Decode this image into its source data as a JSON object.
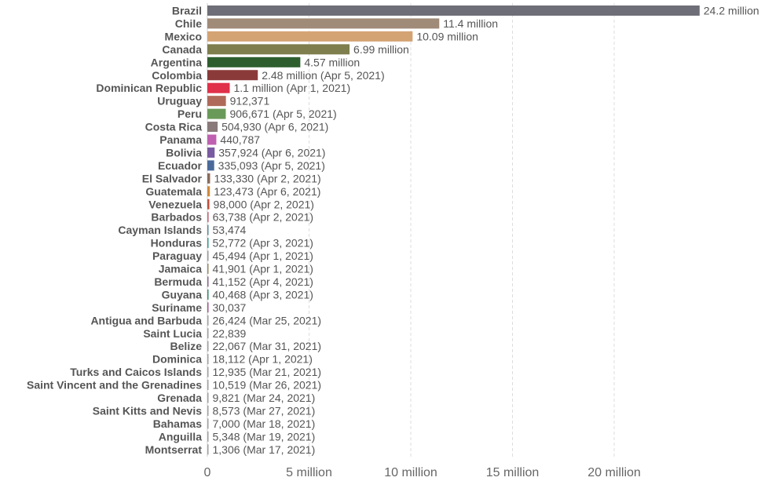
{
  "chart_data": {
    "type": "bar",
    "orientation": "horizontal",
    "xlim": [
      0,
      25000000
    ],
    "x_ticks": [
      {
        "value": 0,
        "label": "0"
      },
      {
        "value": 5000000,
        "label": "5 million"
      },
      {
        "value": 10000000,
        "label": "10 million"
      },
      {
        "value": 15000000,
        "label": "15 million"
      },
      {
        "value": 20000000,
        "label": "20 million"
      }
    ],
    "grid": true,
    "bars": [
      {
        "category": "Brazil",
        "value": 24200000,
        "label": "24.2 million",
        "color": "#6e6e78"
      },
      {
        "category": "Chile",
        "value": 11400000,
        "label": "11.4 million",
        "color": "#a08a78"
      },
      {
        "category": "Mexico",
        "value": 10090000,
        "label": "10.09 million",
        "color": "#d4a373"
      },
      {
        "category": "Canada",
        "value": 6990000,
        "label": "6.99 million",
        "color": "#7e7e4e"
      },
      {
        "category": "Argentina",
        "value": 4570000,
        "label": "4.57 million",
        "color": "#2e5e2e"
      },
      {
        "category": "Colombia",
        "value": 2480000,
        "label": "2.48 million (Apr 5, 2021)",
        "color": "#8b3a3a"
      },
      {
        "category": "Dominican Republic",
        "value": 1100000,
        "label": "1.1 million (Apr 1, 2021)",
        "color": "#e0304a"
      },
      {
        "category": "Uruguay",
        "value": 912371,
        "label": "912,371",
        "color": "#b06a5a"
      },
      {
        "category": "Peru",
        "value": 906671,
        "label": "906,671 (Apr 5, 2021)",
        "color": "#6a9a5a"
      },
      {
        "category": "Costa Rica",
        "value": 504930,
        "label": "504,930 (Apr 6, 2021)",
        "color": "#8a7a7a"
      },
      {
        "category": "Panama",
        "value": 440787,
        "label": "440,787",
        "color": "#c060b0"
      },
      {
        "category": "Bolivia",
        "value": 357924,
        "label": "357,924 (Apr 6, 2021)",
        "color": "#7a5aa0"
      },
      {
        "category": "Ecuador",
        "value": 335093,
        "label": "335,093 (Apr 5, 2021)",
        "color": "#4a6a9a"
      },
      {
        "category": "El Salvador",
        "value": 133330,
        "label": "133,330 (Apr 2, 2021)",
        "color": "#8a6a5a"
      },
      {
        "category": "Guatemala",
        "value": 123473,
        "label": "123,473 (Apr 6, 2021)",
        "color": "#d08a3a"
      },
      {
        "category": "Venezuela",
        "value": 98000,
        "label": "98,000 (Apr 2, 2021)",
        "color": "#c0503a"
      },
      {
        "category": "Barbados",
        "value": 63738,
        "label": "63,738 (Apr 2, 2021)",
        "color": "#c07080"
      },
      {
        "category": "Cayman Islands",
        "value": 53474,
        "label": "53,474",
        "color": "#5a8a9a"
      },
      {
        "category": "Honduras",
        "value": 52772,
        "label": "52,772 (Apr 3, 2021)",
        "color": "#3a9a8a"
      },
      {
        "category": "Paraguay",
        "value": 45494,
        "label": "45,494 (Apr 1, 2021)",
        "color": "#9a9a9a"
      },
      {
        "category": "Jamaica",
        "value": 41901,
        "label": "41,901 (Apr 1, 2021)",
        "color": "#9a8a6a"
      },
      {
        "category": "Bermuda",
        "value": 41152,
        "label": "41,152 (Apr 4, 2021)",
        "color": "#8a6a8a"
      },
      {
        "category": "Guyana",
        "value": 40468,
        "label": "40,468 (Apr 3, 2021)",
        "color": "#3a8a6a"
      },
      {
        "category": "Suriname",
        "value": 30037,
        "label": "30,037",
        "color": "#a05a8a"
      },
      {
        "category": "Antigua and Barbuda",
        "value": 26424,
        "label": "26,424 (Mar 25, 2021)",
        "color": "#a0a0a0"
      },
      {
        "category": "Saint Lucia",
        "value": 22839,
        "label": "22,839",
        "color": "#a0a0a0"
      },
      {
        "category": "Belize",
        "value": 22067,
        "label": "22,067 (Mar 31, 2021)",
        "color": "#a0a0a0"
      },
      {
        "category": "Dominica",
        "value": 18112,
        "label": "18,112 (Apr 1, 2021)",
        "color": "#a0a0a0"
      },
      {
        "category": "Turks and Caicos Islands",
        "value": 12935,
        "label": "12,935 (Mar 21, 2021)",
        "color": "#a0a0a0"
      },
      {
        "category": "Saint Vincent and the Grenadines",
        "value": 10519,
        "label": "10,519 (Mar 26, 2021)",
        "color": "#a0a0a0"
      },
      {
        "category": "Grenada",
        "value": 9821,
        "label": "9,821 (Mar 24, 2021)",
        "color": "#a0a0a0"
      },
      {
        "category": "Saint Kitts and Nevis",
        "value": 8573,
        "label": "8,573 (Mar 27, 2021)",
        "color": "#a0a0a0"
      },
      {
        "category": "Bahamas",
        "value": 7000,
        "label": "7,000 (Mar 18, 2021)",
        "color": "#a0a0a0"
      },
      {
        "category": "Anguilla",
        "value": 5348,
        "label": "5,348 (Mar 19, 2021)",
        "color": "#a0a0a0"
      },
      {
        "category": "Montserrat",
        "value": 1306,
        "label": "1,306 (Mar 17, 2021)",
        "color": "#a0a0a0"
      }
    ]
  }
}
